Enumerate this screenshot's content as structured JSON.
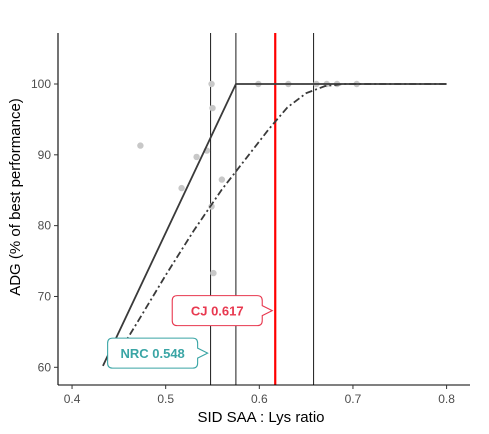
{
  "chart_data": {
    "type": "scatter",
    "xlabel": "SID SAA : Lys ratio",
    "ylabel": "ADG (% of best performance)",
    "xlim": [
      0.385,
      0.825
    ],
    "ylim": [
      57.5,
      107.2
    ],
    "x_ticks": [
      0.4,
      0.5,
      0.6,
      0.7,
      0.8
    ],
    "y_ticks": [
      60,
      70,
      80,
      90,
      100
    ],
    "grid": false,
    "colors": {
      "points": "#c8c8c8",
      "model_line": "#3a3a3a",
      "cj_line": "#ff0000",
      "cj_label": "#e8384f",
      "nrc_label": "#3aa5a5",
      "axis": "#000000"
    },
    "points": [
      {
        "x": 0.473,
        "y": 91.3
      },
      {
        "x": 0.517,
        "y": 85.3
      },
      {
        "x": 0.533,
        "y": 89.7
      },
      {
        "x": 0.544,
        "y": 90.6
      },
      {
        "x": 0.549,
        "y": 100.0
      },
      {
        "x": 0.55,
        "y": 96.6
      },
      {
        "x": 0.549,
        "y": 82.7
      },
      {
        "x": 0.551,
        "y": 73.3
      },
      {
        "x": 0.56,
        "y": 86.5
      },
      {
        "x": 0.599,
        "y": 100.0
      },
      {
        "x": 0.631,
        "y": 100.0
      },
      {
        "x": 0.661,
        "y": 100.0
      },
      {
        "x": 0.672,
        "y": 100.0
      },
      {
        "x": 0.683,
        "y": 100.0
      },
      {
        "x": 0.704,
        "y": 100.0
      }
    ],
    "broken_line": [
      {
        "x": 0.433,
        "y": 60.2
      },
      {
        "x": 0.575,
        "y": 100.0
      },
      {
        "x": 0.8,
        "y": 100.0
      }
    ],
    "curvilinear": [
      {
        "x": 0.445,
        "y": 61.0
      },
      {
        "x": 0.47,
        "y": 66.4
      },
      {
        "x": 0.5,
        "y": 73.0
      },
      {
        "x": 0.53,
        "y": 79.3
      },
      {
        "x": 0.56,
        "y": 85.1
      },
      {
        "x": 0.59,
        "y": 90.2
      },
      {
        "x": 0.61,
        "y": 93.6
      },
      {
        "x": 0.63,
        "y": 96.7
      },
      {
        "x": 0.65,
        "y": 98.7
      },
      {
        "x": 0.67,
        "y": 99.7
      },
      {
        "x": 0.69,
        "y": 100.0
      },
      {
        "x": 0.8,
        "y": 100.0
      }
    ],
    "vlines": [
      {
        "x": 0.548,
        "kind": "thin"
      },
      {
        "x": 0.575,
        "kind": "thin"
      },
      {
        "x": 0.617,
        "kind": "red"
      },
      {
        "x": 0.658,
        "kind": "thin"
      }
    ],
    "annotations": [
      {
        "text": "CJ 0.617",
        "x": 0.617,
        "y": 68.0,
        "color": "#e8384f"
      },
      {
        "text": "NRC 0.548",
        "x": 0.548,
        "y": 62.0,
        "color": "#3aa5a5"
      }
    ]
  }
}
